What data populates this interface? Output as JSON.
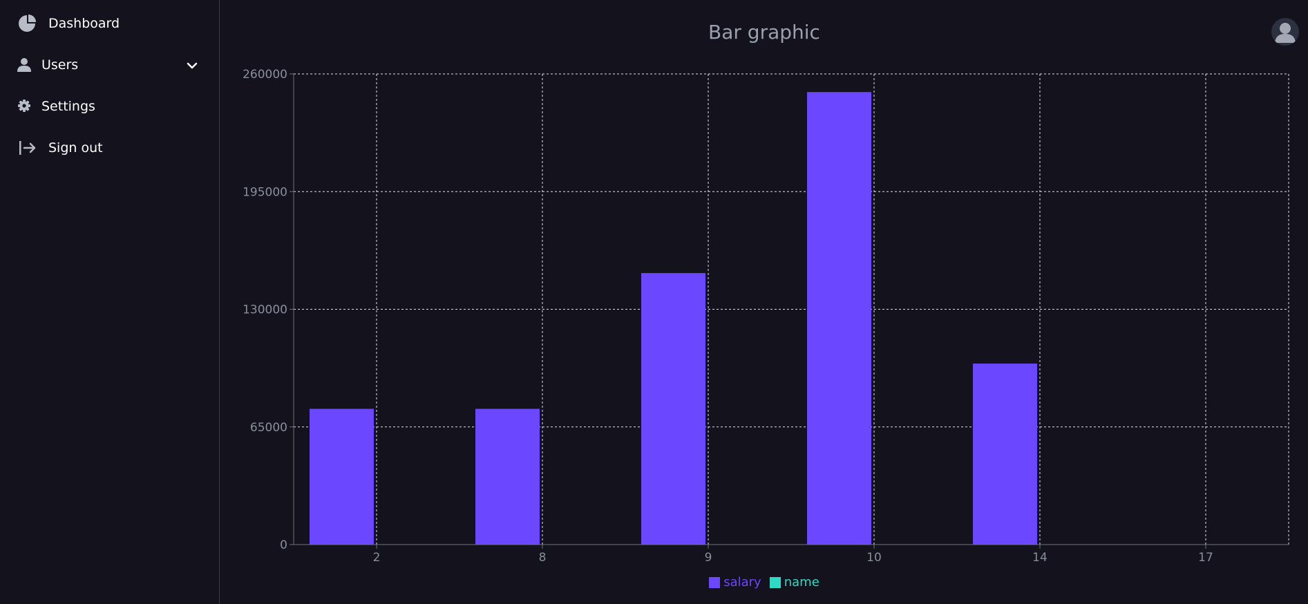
{
  "sidebar": {
    "items": [
      {
        "label": "Dashboard",
        "icon": "pie-chart-icon"
      },
      {
        "label": "Users",
        "icon": "user-icon",
        "expandable": true
      },
      {
        "label": "Settings",
        "icon": "gear-icon"
      },
      {
        "label": "Sign out",
        "icon": "sign-out-icon"
      }
    ]
  },
  "header": {
    "title": "Bar graphic",
    "avatar_icon": "user-avatar-icon"
  },
  "colors": {
    "background": "#13121d",
    "accent": "#6b47ff",
    "secondary": "#2fd9c4",
    "axis_text": "#8a8f9c",
    "grid": "#e6e6e6"
  },
  "chart_data": {
    "type": "bar",
    "title": "Bar graphic",
    "categories": [
      "2",
      "8",
      "9",
      "10",
      "14",
      "17"
    ],
    "series": [
      {
        "name": "salary",
        "color": "#6b47ff",
        "values": [
          75000,
          75000,
          150000,
          250000,
          100000,
          0
        ]
      },
      {
        "name": "name",
        "color": "#2fd9c4",
        "values": [
          0,
          0,
          0,
          0,
          0,
          0
        ]
      }
    ],
    "ylim": [
      0,
      260000
    ],
    "yticks": [
      0,
      65000,
      130000,
      195000,
      260000
    ],
    "grid": true,
    "legend_position": "bottom"
  }
}
